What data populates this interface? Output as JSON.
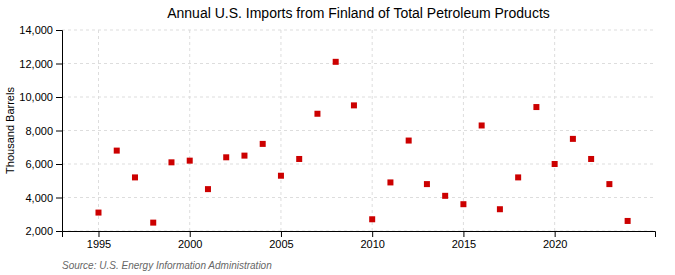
{
  "chart_data": {
    "type": "scatter",
    "title": "Annual U.S. Imports from Finland of Total Petroleum Products",
    "ylabel": "Thousand Barrels",
    "source": "Source: U.S. Energy Information Administration",
    "x": [
      1995,
      1996,
      1997,
      1998,
      1999,
      2000,
      2001,
      2002,
      2003,
      2004,
      2005,
      2006,
      2007,
      2008,
      2009,
      2010,
      2011,
      2012,
      2013,
      2014,
      2015,
      2016,
      2017,
      2018,
      2019,
      2020,
      2021,
      2022,
      2023,
      2024
    ],
    "values": [
      3100,
      6800,
      5200,
      2500,
      6100,
      6200,
      4500,
      6400,
      6500,
      7200,
      5300,
      6300,
      9000,
      12100,
      9500,
      2700,
      4900,
      7400,
      4800,
      4100,
      3600,
      8300,
      3300,
      5200,
      9400,
      6000,
      7500,
      6300,
      4800,
      2600
    ],
    "color": "#cc0000",
    "marker": "square",
    "xlim": [
      1993.0,
      2025.5
    ],
    "xticks": [
      1995,
      2000,
      2005,
      2010,
      2015,
      2020
    ],
    "ylim": [
      2000,
      14000
    ],
    "yticks": [
      {
        "value": 2000,
        "label": "2,000"
      },
      {
        "value": 4000,
        "label": "4,000"
      },
      {
        "value": 6000,
        "label": "6,000"
      },
      {
        "value": 8000,
        "label": "8,000"
      },
      {
        "value": 10000,
        "label": "10,000"
      },
      {
        "value": 12000,
        "label": "12,000"
      },
      {
        "value": 14000,
        "label": "14,000"
      }
    ],
    "grid": true
  }
}
